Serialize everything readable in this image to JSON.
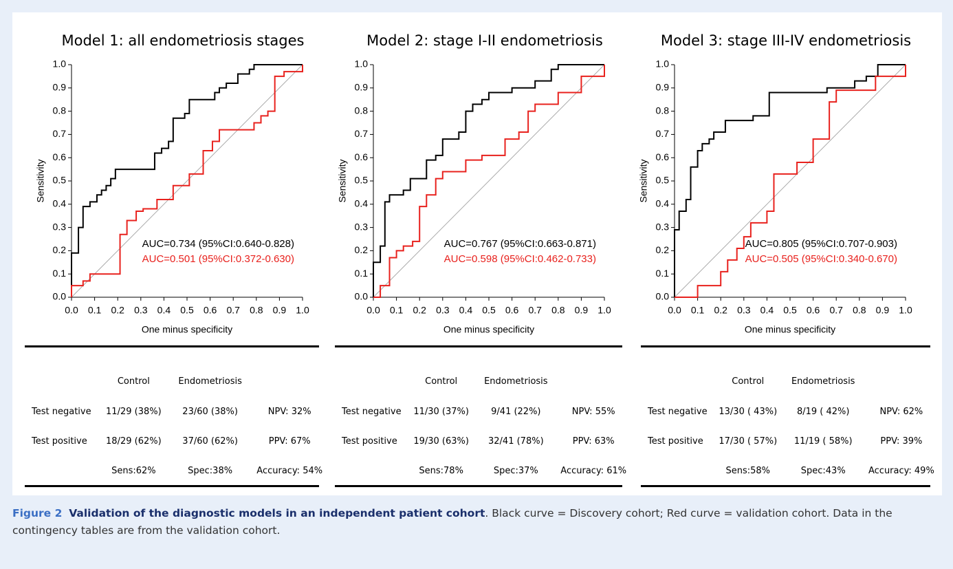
{
  "chart_data": [
    {
      "type": "line",
      "title": "Model 1: all endometriosis stages",
      "xlabel": "One minus specificity",
      "ylabel": "Sensitivity",
      "xlim": [
        0,
        1
      ],
      "ylim": [
        0,
        1
      ],
      "xticks": [
        {
          "value": 0,
          "label": "0.0"
        },
        0.1,
        0.2,
        0.3,
        0.4,
        0.5,
        0.6,
        0.7,
        0.8,
        0.9,
        {
          "value": 1,
          "label": "1.0"
        }
      ],
      "yticks": [
        {
          "value": 0,
          "label": "0.0"
        },
        0.1,
        0.2,
        0.3,
        0.4,
        0.5,
        0.6,
        0.7,
        0.8,
        0.9,
        {
          "value": 1,
          "label": "1.0"
        }
      ],
      "annotations": [
        {
          "text": "AUC=0.734 (95%CI:0.640-0.828)",
          "color": "#000000"
        },
        {
          "text": "AUC=0.501 (95%CI:0.372-0.630)",
          "color": "#e8211d"
        }
      ],
      "series": [
        {
          "color": "#000000",
          "x": [
            0,
            0,
            0.03,
            0.03,
            0.05,
            0.05,
            0.08,
            0.08,
            0.11,
            0.11,
            0.13,
            0.13,
            0.15,
            0.15,
            0.17,
            0.17,
            0.19,
            0.19,
            0.36,
            0.36,
            0.39,
            0.39,
            0.42,
            0.42,
            0.44,
            0.44,
            0.49,
            0.49,
            0.51,
            0.51,
            0.62,
            0.62,
            0.64,
            0.64,
            0.67,
            0.67,
            0.72,
            0.72,
            0.77,
            0.77,
            0.79,
            0.79,
            1
          ],
          "values": [
            0,
            0.19,
            0.19,
            0.3,
            0.3,
            0.39,
            0.39,
            0.41,
            0.41,
            0.44,
            0.44,
            0.46,
            0.46,
            0.48,
            0.48,
            0.51,
            0.51,
            0.55,
            0.55,
            0.62,
            0.62,
            0.64,
            0.64,
            0.67,
            0.67,
            0.77,
            0.77,
            0.79,
            0.79,
            0.85,
            0.85,
            0.88,
            0.88,
            0.9,
            0.9,
            0.92,
            0.92,
            0.96,
            0.96,
            0.98,
            0.98,
            1,
            1
          ]
        },
        {
          "color": "#e8211d",
          "x": [
            0,
            0,
            0.05,
            0.05,
            0.08,
            0.08,
            0.21,
            0.21,
            0.24,
            0.24,
            0.28,
            0.28,
            0.31,
            0.31,
            0.37,
            0.37,
            0.44,
            0.44,
            0.51,
            0.51,
            0.57,
            0.57,
            0.61,
            0.61,
            0.64,
            0.64,
            0.79,
            0.79,
            0.82,
            0.82,
            0.85,
            0.85,
            0.88,
            0.88,
            0.92,
            0.92,
            1,
            1
          ],
          "values": [
            0,
            0.05,
            0.05,
            0.07,
            0.07,
            0.1,
            0.1,
            0.27,
            0.27,
            0.33,
            0.33,
            0.37,
            0.37,
            0.38,
            0.38,
            0.42,
            0.42,
            0.48,
            0.48,
            0.53,
            0.53,
            0.63,
            0.63,
            0.67,
            0.67,
            0.72,
            0.72,
            0.75,
            0.75,
            0.78,
            0.78,
            0.8,
            0.8,
            0.95,
            0.95,
            0.97,
            0.97,
            1
          ]
        }
      ]
    },
    {
      "type": "line",
      "title": "Model 2: stage I-II endometriosis",
      "xlabel": "One minus specificity",
      "ylabel": "Sensitivity",
      "xlim": [
        0,
        1
      ],
      "ylim": [
        0,
        1
      ],
      "xticks": [
        {
          "value": 0,
          "label": "0.0"
        },
        0.1,
        0.2,
        0.3,
        0.4,
        0.5,
        0.6,
        0.7,
        0.8,
        0.9,
        {
          "value": 1,
          "label": "1.0"
        }
      ],
      "yticks": [
        {
          "value": 0,
          "label": "0.0"
        },
        0.1,
        0.2,
        0.3,
        0.4,
        0.5,
        0.6,
        0.7,
        0.8,
        0.9,
        {
          "value": 1,
          "label": "1.0"
        }
      ],
      "annotations": [
        {
          "text": "AUC=0.767 (95%CI:0.663-0.871)",
          "color": "#000000"
        },
        {
          "text": "AUC=0.598 (95%CI:0.462-0.733)",
          "color": "#e8211d"
        }
      ],
      "series": [
        {
          "color": "#000000",
          "x": [
            0,
            0,
            0.03,
            0.03,
            0.05,
            0.05,
            0.07,
            0.07,
            0.13,
            0.13,
            0.16,
            0.16,
            0.23,
            0.23,
            0.27,
            0.27,
            0.3,
            0.3,
            0.37,
            0.37,
            0.4,
            0.4,
            0.43,
            0.43,
            0.47,
            0.47,
            0.5,
            0.5,
            0.6,
            0.6,
            0.7,
            0.7,
            0.77,
            0.77,
            0.8,
            0.8,
            1
          ],
          "values": [
            0,
            0.15,
            0.15,
            0.22,
            0.22,
            0.41,
            0.41,
            0.44,
            0.44,
            0.46,
            0.46,
            0.51,
            0.51,
            0.59,
            0.59,
            0.61,
            0.61,
            0.68,
            0.68,
            0.71,
            0.71,
            0.8,
            0.8,
            0.83,
            0.83,
            0.85,
            0.85,
            0.88,
            0.88,
            0.9,
            0.9,
            0.93,
            0.93,
            0.98,
            0.98,
            1,
            1
          ]
        },
        {
          "color": "#e8211d",
          "x": [
            0,
            0.03,
            0.03,
            0.07,
            0.07,
            0.1,
            0.1,
            0.13,
            0.13,
            0.17,
            0.17,
            0.2,
            0.2,
            0.23,
            0.23,
            0.27,
            0.27,
            0.3,
            0.3,
            0.4,
            0.4,
            0.47,
            0.47,
            0.57,
            0.57,
            0.63,
            0.63,
            0.67,
            0.67,
            0.7,
            0.7,
            0.8,
            0.8,
            0.9,
            0.9,
            1,
            1
          ],
          "values": [
            0,
            0,
            0.05,
            0.05,
            0.17,
            0.17,
            0.2,
            0.2,
            0.22,
            0.22,
            0.24,
            0.24,
            0.39,
            0.39,
            0.44,
            0.44,
            0.51,
            0.51,
            0.54,
            0.54,
            0.59,
            0.59,
            0.61,
            0.61,
            0.68,
            0.68,
            0.71,
            0.71,
            0.8,
            0.8,
            0.83,
            0.83,
            0.88,
            0.88,
            0.95,
            0.95,
            1
          ]
        }
      ]
    },
    {
      "type": "line",
      "title": "Model 3: stage III-IV endometriosis",
      "xlabel": "One minus specificity",
      "ylabel": "Sensitivity",
      "xlim": [
        0,
        1
      ],
      "ylim": [
        0,
        1
      ],
      "xticks": [
        {
          "value": 0,
          "label": "0.0"
        },
        0.1,
        0.2,
        0.3,
        0.4,
        0.5,
        0.6,
        0.7,
        0.8,
        0.9,
        {
          "value": 1,
          "label": "1.0"
        }
      ],
      "yticks": [
        {
          "value": 0,
          "label": "0.0"
        },
        0.1,
        0.2,
        0.3,
        0.4,
        0.5,
        0.6,
        0.7,
        0.8,
        0.9,
        {
          "value": 1,
          "label": "1.0"
        }
      ],
      "annotations": [
        {
          "text": "AUC=0.805 (95%CI:0.707-0.903)",
          "color": "#000000"
        },
        {
          "text": "AUC=0.505 (95%CI:0.340-0.670)",
          "color": "#e8211d"
        }
      ],
      "series": [
        {
          "color": "#000000",
          "x": [
            0,
            0,
            0.02,
            0.02,
            0.05,
            0.05,
            0.07,
            0.07,
            0.1,
            0.1,
            0.12,
            0.12,
            0.15,
            0.15,
            0.17,
            0.17,
            0.22,
            0.22,
            0.34,
            0.34,
            0.41,
            0.41,
            0.66,
            0.66,
            0.78,
            0.78,
            0.83,
            0.83,
            0.88,
            0.88,
            1
          ],
          "values": [
            0,
            0.29,
            0.29,
            0.37,
            0.37,
            0.42,
            0.42,
            0.56,
            0.56,
            0.63,
            0.63,
            0.66,
            0.66,
            0.68,
            0.68,
            0.71,
            0.71,
            0.76,
            0.76,
            0.78,
            0.78,
            0.88,
            0.88,
            0.9,
            0.9,
            0.93,
            0.93,
            0.95,
            0.95,
            1,
            1
          ]
        },
        {
          "color": "#e8211d",
          "x": [
            0,
            0.1,
            0.1,
            0.2,
            0.2,
            0.23,
            0.23,
            0.27,
            0.27,
            0.3,
            0.3,
            0.33,
            0.33,
            0.4,
            0.4,
            0.43,
            0.43,
            0.53,
            0.53,
            0.6,
            0.6,
            0.67,
            0.67,
            0.7,
            0.7,
            0.87,
            0.87,
            1,
            1
          ],
          "values": [
            0,
            0,
            0.05,
            0.05,
            0.11,
            0.11,
            0.16,
            0.16,
            0.21,
            0.21,
            0.26,
            0.26,
            0.32,
            0.32,
            0.37,
            0.37,
            0.53,
            0.53,
            0.58,
            0.58,
            0.68,
            0.68,
            0.84,
            0.84,
            0.89,
            0.89,
            0.95,
            0.95,
            1
          ]
        }
      ]
    }
  ],
  "tables": [
    {
      "header": [
        "Control",
        "Endometriosis"
      ],
      "rows": [
        [
          "Test negative",
          "11/29 (38%)",
          "23/60 (38%)",
          "NPV: 32%"
        ],
        [
          "Test positive",
          "18/29 (62%)",
          "37/60 (62%)",
          "PPV: 67%"
        ]
      ],
      "footer": [
        "Sens:62%",
        "Spec:38%",
        "Accuracy: 54%"
      ]
    },
    {
      "header": [
        "Control",
        "Endometriosis"
      ],
      "rows": [
        [
          "Test negative",
          "11/30 (37%)",
          "9/41 (22%)",
          "NPV: 55%"
        ],
        [
          "Test positive",
          "19/30 (63%)",
          "32/41 (78%)",
          "PPV: 63%"
        ]
      ],
      "footer": [
        "Sens:78%",
        "Spec:37%",
        "Accuracy: 61%"
      ]
    },
    {
      "header": [
        "Control",
        "Endometriosis"
      ],
      "rows": [
        [
          "Test negative",
          "13/30 ( 43%)",
          "8/19 ( 42%)",
          "NPV: 62%"
        ],
        [
          "Test positive",
          "17/30 ( 57%)",
          "11/19 ( 58%)",
          "PPV: 39%"
        ]
      ],
      "footer": [
        "Sens:58%",
        "Spec:43%",
        "Accuracy: 49%"
      ]
    }
  ],
  "caption": {
    "label": "Figure 2",
    "title": "Validation of the diagnostic models in an independent patient cohort",
    "text": ". Black curve = Discovery cohort; Red curve = validation cohort. Data in the contingency tables are from the validation cohort."
  }
}
